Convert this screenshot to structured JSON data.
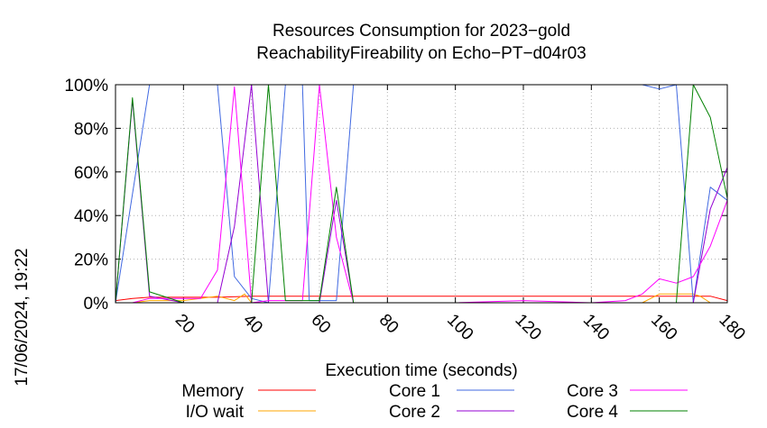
{
  "chart_data": {
    "type": "line",
    "title_line1": "Resources Consumption for 2023−gold",
    "title_line2": "ReachabilityFireability on Echo−PT−d04r03",
    "xlabel": "Execution time (seconds)",
    "ylabel": "",
    "side_label": "17/06/2024, 19:22",
    "xlim": [
      0,
      180
    ],
    "ylim": [
      0,
      100
    ],
    "x_ticks": [
      20,
      40,
      60,
      80,
      100,
      120,
      140,
      160,
      180
    ],
    "x_tick_labels": [
      "20",
      "40",
      "60",
      "80",
      "100",
      "120",
      "140",
      "160",
      "180"
    ],
    "y_ticks": [
      0,
      20,
      40,
      60,
      80,
      100
    ],
    "y_tick_labels": [
      "0%",
      "20%",
      "40%",
      "60%",
      "80%",
      "100%"
    ],
    "grid": true,
    "legend_position": "bottom",
    "series": [
      {
        "name": "Memory",
        "color": "#ff0000",
        "x": [
          0,
          5,
          10,
          20,
          30,
          40,
          60,
          80,
          100,
          120,
          140,
          160,
          170,
          175,
          180
        ],
        "y": [
          1,
          2,
          2.5,
          2.5,
          2.5,
          3,
          3,
          3,
          3,
          3,
          3,
          3,
          3,
          3,
          1
        ]
      },
      {
        "name": "I/O wait",
        "color": "#ffa500",
        "x": [
          0,
          5,
          10,
          20,
          30,
          35,
          38,
          40,
          45,
          60,
          80,
          100,
          120,
          140,
          155,
          160,
          165,
          170,
          172,
          175,
          180
        ],
        "y": [
          0,
          0,
          1,
          1,
          3,
          1,
          4,
          0,
          0,
          0,
          0,
          0,
          0,
          0,
          0,
          4,
          4,
          4,
          3,
          0,
          0
        ]
      },
      {
        "name": "Core 1",
        "color": "#4169e1",
        "x": [
          0,
          10,
          20,
          30,
          30,
          35,
          40,
          45,
          50,
          55,
          57,
          60,
          65,
          70,
          80,
          100,
          120,
          140,
          155,
          160,
          165,
          170,
          175,
          180
        ],
        "y": [
          0,
          100,
          100,
          100,
          100,
          12,
          2,
          0,
          100,
          100,
          1,
          1,
          1,
          100,
          100,
          100,
          100,
          100,
          100,
          98,
          100,
          0,
          53,
          47
        ]
      },
      {
        "name": "Core 2",
        "color": "#9400d3",
        "x": [
          0,
          5,
          10,
          20,
          30,
          35,
          40,
          45,
          55,
          60,
          65,
          70,
          80,
          100,
          120,
          140,
          160,
          170,
          175,
          180
        ],
        "y": [
          0,
          93,
          3,
          0,
          0,
          35,
          100,
          0,
          0,
          0,
          47,
          0,
          0,
          0,
          0,
          0,
          0,
          0,
          43,
          62
        ]
      },
      {
        "name": "Core 3",
        "color": "#ff00ff",
        "x": [
          0,
          5,
          10,
          20,
          25,
          30,
          35,
          40,
          45,
          55,
          60,
          65,
          70,
          80,
          100,
          120,
          140,
          150,
          155,
          160,
          165,
          170,
          175,
          180
        ],
        "y": [
          0,
          0,
          2,
          2,
          2,
          15,
          99,
          0,
          1,
          1,
          100,
          30,
          0,
          0,
          0,
          1,
          0,
          1,
          4,
          11,
          9,
          12,
          26,
          47
        ]
      },
      {
        "name": "Core 4",
        "color": "#008000",
        "x": [
          0,
          5,
          10,
          20,
          40,
          45,
          50,
          60,
          65,
          70,
          80,
          100,
          120,
          140,
          160,
          165,
          170,
          175,
          180
        ],
        "y": [
          0,
          94,
          5,
          0,
          0,
          100,
          1,
          1,
          53,
          0,
          0,
          0,
          0,
          0,
          0,
          0,
          100,
          85,
          48
        ]
      }
    ]
  }
}
